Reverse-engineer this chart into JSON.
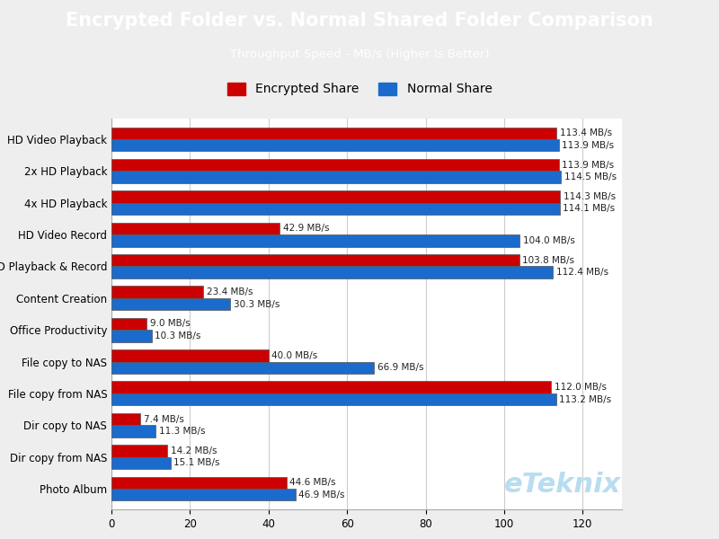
{
  "title": "Encrypted Folder vs. Normal Shared Folder Comparison",
  "subtitle": "Throughput Speed - MB/s (Higher Is Better)",
  "title_bg_color": "#1aabea",
  "title_text_color": "#ffffff",
  "subtitle_text_color": "#ffffff",
  "categories": [
    "Photo Album",
    "Dir copy from NAS",
    "Dir copy to NAS",
    "File copy from NAS",
    "File copy to NAS",
    "Office Productivity",
    "Content Creation",
    "HD Playback & Record",
    "HD Video Record",
    "4x HD Playback",
    "2x HD Playback",
    "HD Video Playback"
  ],
  "encrypted": [
    44.6,
    14.2,
    7.4,
    112.0,
    40.0,
    9.0,
    23.4,
    103.8,
    42.9,
    114.3,
    113.9,
    113.4
  ],
  "normal": [
    46.9,
    15.1,
    11.3,
    113.2,
    66.9,
    10.3,
    30.3,
    112.4,
    104.0,
    114.1,
    114.5,
    113.9
  ],
  "encrypted_color": "#cc0000",
  "normal_color": "#1a6bcc",
  "bar_height": 0.38,
  "xlim": [
    0,
    130
  ],
  "xticks": [
    0,
    20,
    40,
    60,
    80,
    100,
    120
  ],
  "background_color": "#eeeeee",
  "plot_bg_color": "#ffffff",
  "grid_color": "#cccccc",
  "label_fontsize": 7.5,
  "axis_label_fontsize": 8.5,
  "watermark": "eTeknix",
  "watermark_color": "#b8ddf0"
}
